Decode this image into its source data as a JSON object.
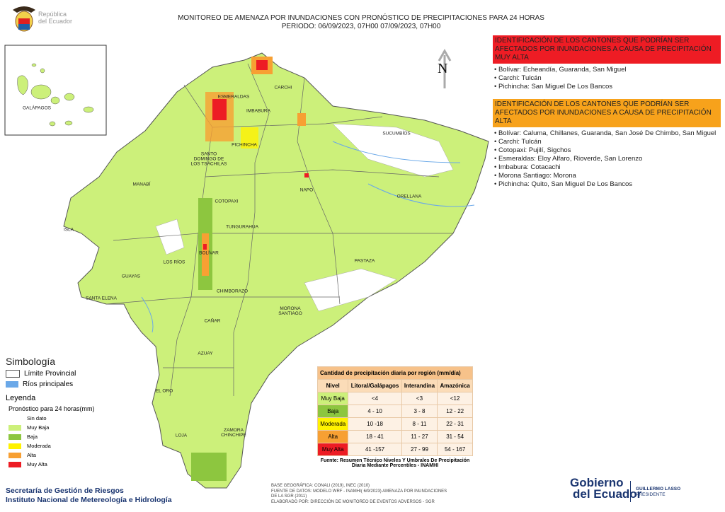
{
  "header": {
    "logo_text": [
      "República",
      "del Ecuador"
    ],
    "title": "MONITOREO DE AMENAZA POR INUNDACIONES  CON PRONÓSTICO DE  PRECIPITACIONES PARA 24 HORAS",
    "period": "PERIODO: 06/09/2023, 07H00 07/09/2023, 07H00"
  },
  "north": "N",
  "alerts": [
    {
      "title": "IDENTIFICACIÓN DE LOS CANTONES QUE PODRÍAN SER AFECTADOS POR INUNDACIONES  A CAUSA DE PRECIPITACIÓN MUY ALTA",
      "color": "#ee1c24",
      "items": [
        "Bolívar: Echeandía, Guaranda, San Miguel",
        "Carchi: Tulcán",
        "Pichincha: San Miguel De Los Bancos"
      ]
    },
    {
      "title": "IDENTIFICACIÓN DE LOS CANTONES QUE  PODRÍAN SER AFECTADOS POR INUNDACIONES  A CAUSA DE PRECIPITACIÓN ALTA",
      "color": "#f7a21b",
      "items": [
        "Bolívar: Caluma, Chillanes, Guaranda, San José De Chimbo, San Miguel",
        "Carchi: Tulcán",
        "Cotopaxi: Pujilí, Sigchos",
        "Esmeraldas: Eloy Alfaro, Rioverde, San Lorenzo",
        "Imbabura: Cotacachi",
        "Morona Santiago: Morona",
        "Pichincha: Quito, San Miguel De Los Bancos"
      ]
    }
  ],
  "map": {
    "inset_label": "GALÁPAGOS",
    "province_labels": [
      "ESMERALDAS",
      "CARCHI",
      "IMBABURA",
      "SUCUMBÍOS",
      "PICHINCHA",
      "SANTO DOMINGO DE LOS TSÁCHILAS",
      "NAPO",
      "MANABÍ",
      "ORELLANA",
      "COTOPAXI",
      "ISLA",
      "TUNGURAHUA",
      "BOLÍVAR",
      "LOS RÍOS",
      "PASTAZA",
      "GUAYAS",
      "CHIMBORAZO",
      "SANTA ELENA",
      "MORONA SANTIAGO",
      "CAÑAR",
      "AZUAY",
      "EL ORO",
      "LOJA",
      "ZAMORA CHINCHIPE"
    ]
  },
  "symbology": {
    "title": "Simbología",
    "items": [
      "Límite Provincial",
      "Ríos principales"
    ],
    "legend_title": "Leyenda",
    "forecast_title": "Pronóstico para 24 horas(mm)",
    "levels": [
      {
        "label": "Sin dato",
        "color": "#ffffff"
      },
      {
        "label": "Muy Baja",
        "color": "#ccf07a"
      },
      {
        "label": "Baja",
        "color": "#8dc63f"
      },
      {
        "label": "Moderada",
        "color": "#fff200"
      },
      {
        "label": "Alta",
        "color": "#f7a033"
      },
      {
        "label": "Muy Alta",
        "color": "#ed1c24"
      }
    ]
  },
  "table": {
    "title": "Cantidad de precipitación diaria por región (mm/día)",
    "headers": [
      "Nivel",
      "Litoral/Galápagos",
      "Interandina",
      "Amazónica"
    ],
    "rows": [
      [
        "Muy Baja",
        "<4",
        "<3",
        "<12"
      ],
      [
        "Baja",
        "4 - 10",
        "3 - 8",
        "12 - 22"
      ],
      [
        "Moderada",
        "10 -18",
        "8 - 11",
        "22 - 31"
      ],
      [
        "Alta",
        "18 - 41",
        "11 - 27",
        "31 - 54"
      ],
      [
        "Muy Alta",
        "41 -157",
        "27 - 99",
        "54 - 167"
      ]
    ],
    "source": "Fuente: Resumen Técnico Niveles Y Umbrales De Precipitación Diaria Mediante Percentiles - INAMHI"
  },
  "footer": {
    "institutions": [
      "Secretaría de Gestión de Riesgos",
      "Instituto Nacional de Metereología e Hidrología"
    ],
    "notes": [
      "BASE GEOGRÁFICA: CONALI  (2019), INEC  (2010)",
      "FUENTE DE DATOS: MODELO WRF - INAMHI( 6/9/2023)  AMENAZA POR INUNDACIONES DE LA SGR  (2011)",
      "ELABORADO POR: DIRECCIÓN DE MONITOREO DE EVENTOS ADVERSOS - SGR"
    ],
    "logo": {
      "name": [
        "Gobierno",
        "del Ecuador"
      ],
      "president": "GUILLERMO LASSO",
      "role": "PRESIDENTE"
    }
  }
}
